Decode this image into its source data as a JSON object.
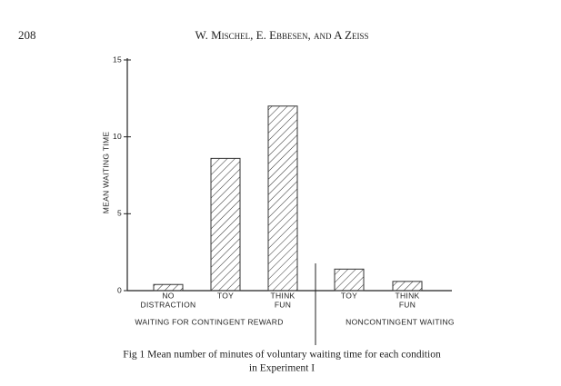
{
  "page_number": "208",
  "running_head": "W. Mischel, E. Ebbesen, and A Zeiss",
  "chart_data": {
    "type": "bar",
    "ylabel": "MEAN WAITING TIME",
    "categories": [
      [
        "NO",
        "DISTRACTION"
      ],
      [
        "TOY"
      ],
      [
        "THINK",
        "FUN"
      ],
      [
        "TOY"
      ],
      [
        "THINK",
        "FUN"
      ]
    ],
    "values": [
      0.4,
      8.6,
      12.0,
      1.4,
      0.6
    ],
    "group_labels": [
      "WAITING FOR CONTINGENT REWARD",
      "NONCONTINGENT WAITING"
    ],
    "color": "#333333",
    "ylim": [
      0,
      15
    ],
    "yticks": [
      0,
      5,
      10,
      15
    ]
  },
  "caption": [
    "Fig 1 Mean number of minutes of voluntary waiting time for each condition",
    "in Experiment I"
  ]
}
